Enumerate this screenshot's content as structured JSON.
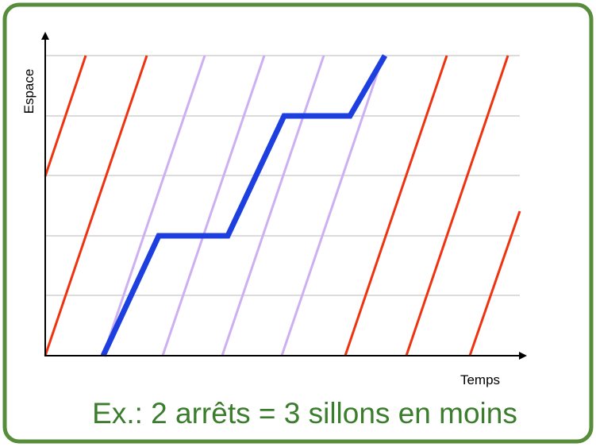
{
  "y_axis_label": "Espace",
  "x_axis_label": "Temps",
  "caption": "Ex.: 2 arrêts = 3 sillons en moins"
}
